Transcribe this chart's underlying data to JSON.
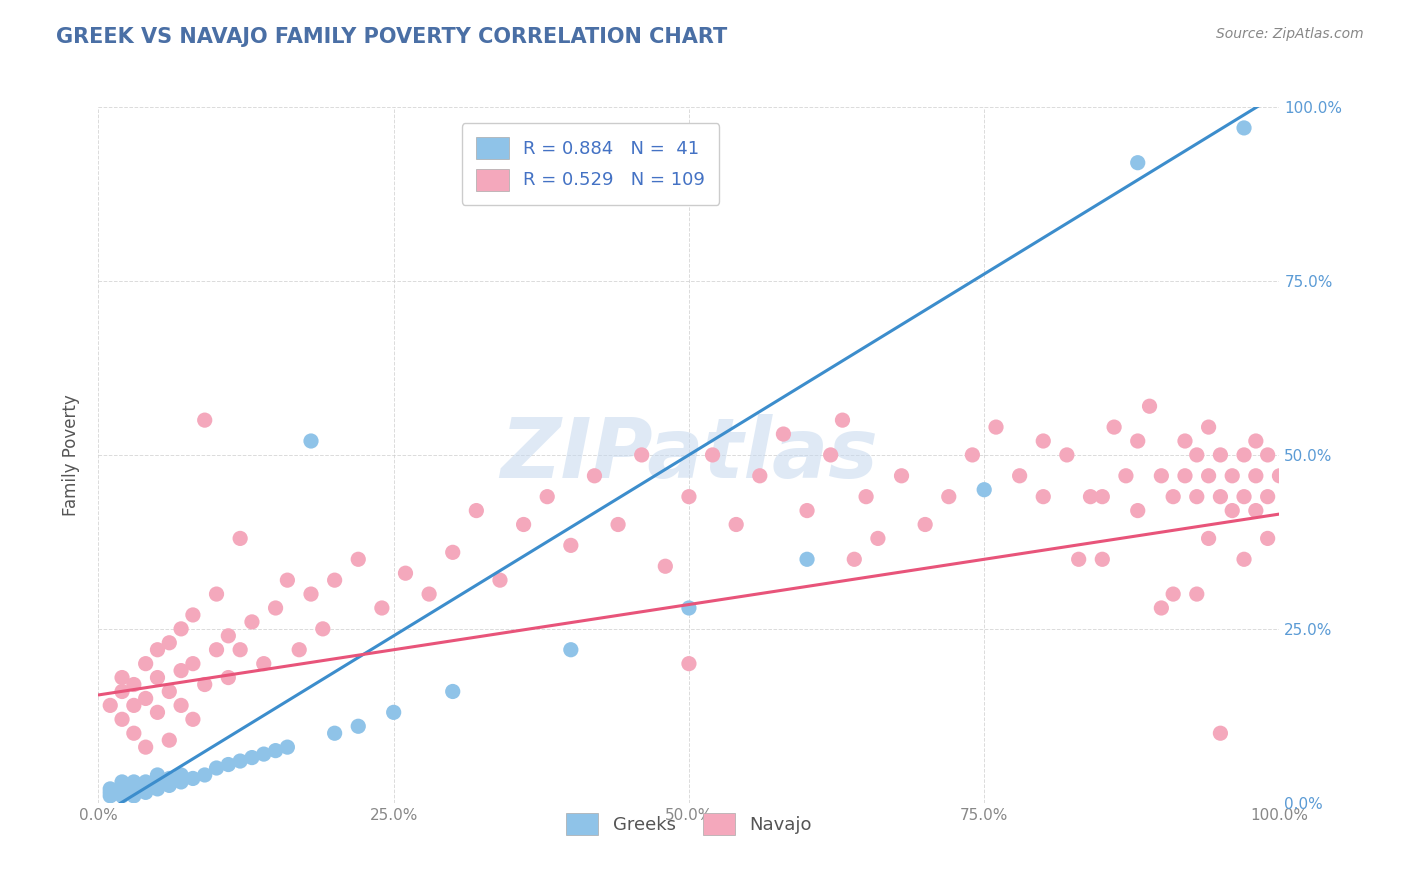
{
  "title": "GREEK VS NAVAJO FAMILY POVERTY CORRELATION CHART",
  "source_text": "Source: ZipAtlas.com",
  "ylabel": "Family Poverty",
  "watermark": "ZIPatlas",
  "xlim": [
    0,
    1
  ],
  "ylim": [
    0,
    1
  ],
  "xticks": [
    0.0,
    0.25,
    0.5,
    0.75,
    1.0
  ],
  "yticks": [
    0.0,
    0.25,
    0.5,
    0.75,
    1.0
  ],
  "xticklabels": [
    "0.0%",
    "25.0%",
    "50.0%",
    "75.0%",
    "100.0%"
  ],
  "yticklabels": [
    "0.0%",
    "25.0%",
    "50.0%",
    "75.0%",
    "100.0%"
  ],
  "greek_R": 0.884,
  "greek_N": 41,
  "navajo_R": 0.529,
  "navajo_N": 109,
  "greek_color": "#8fc3e8",
  "navajo_color": "#f4a8bc",
  "greek_line_color": "#3c8dcc",
  "navajo_line_color": "#e8547a",
  "title_color": "#4a6fa5",
  "legend_text_color": "#4472c4",
  "right_tick_color": "#5b9bd5",
  "greek_scatter": [
    [
      0.01,
      0.01
    ],
    [
      0.01,
      0.02
    ],
    [
      0.01,
      0.015
    ],
    [
      0.02,
      0.01
    ],
    [
      0.02,
      0.02
    ],
    [
      0.02,
      0.025
    ],
    [
      0.02,
      0.03
    ],
    [
      0.03,
      0.01
    ],
    [
      0.03,
      0.02
    ],
    [
      0.03,
      0.03
    ],
    [
      0.03,
      0.025
    ],
    [
      0.04,
      0.015
    ],
    [
      0.04,
      0.02
    ],
    [
      0.04,
      0.03
    ],
    [
      0.05,
      0.02
    ],
    [
      0.05,
      0.03
    ],
    [
      0.05,
      0.04
    ],
    [
      0.06,
      0.025
    ],
    [
      0.06,
      0.035
    ],
    [
      0.07,
      0.03
    ],
    [
      0.07,
      0.04
    ],
    [
      0.08,
      0.035
    ],
    [
      0.09,
      0.04
    ],
    [
      0.1,
      0.05
    ],
    [
      0.11,
      0.055
    ],
    [
      0.12,
      0.06
    ],
    [
      0.13,
      0.065
    ],
    [
      0.14,
      0.07
    ],
    [
      0.15,
      0.075
    ],
    [
      0.16,
      0.08
    ],
    [
      0.18,
      0.52
    ],
    [
      0.2,
      0.1
    ],
    [
      0.22,
      0.11
    ],
    [
      0.25,
      0.13
    ],
    [
      0.3,
      0.16
    ],
    [
      0.4,
      0.22
    ],
    [
      0.5,
      0.28
    ],
    [
      0.6,
      0.35
    ],
    [
      0.75,
      0.45
    ],
    [
      0.88,
      0.92
    ],
    [
      0.97,
      0.97
    ]
  ],
  "navajo_scatter": [
    [
      0.01,
      0.14
    ],
    [
      0.02,
      0.12
    ],
    [
      0.02,
      0.16
    ],
    [
      0.02,
      0.18
    ],
    [
      0.03,
      0.1
    ],
    [
      0.03,
      0.14
    ],
    [
      0.03,
      0.17
    ],
    [
      0.04,
      0.08
    ],
    [
      0.04,
      0.15
    ],
    [
      0.04,
      0.2
    ],
    [
      0.05,
      0.13
    ],
    [
      0.05,
      0.18
    ],
    [
      0.05,
      0.22
    ],
    [
      0.06,
      0.09
    ],
    [
      0.06,
      0.16
    ],
    [
      0.06,
      0.23
    ],
    [
      0.07,
      0.14
    ],
    [
      0.07,
      0.19
    ],
    [
      0.07,
      0.25
    ],
    [
      0.08,
      0.12
    ],
    [
      0.08,
      0.2
    ],
    [
      0.08,
      0.27
    ],
    [
      0.09,
      0.17
    ],
    [
      0.09,
      0.55
    ],
    [
      0.1,
      0.22
    ],
    [
      0.1,
      0.3
    ],
    [
      0.11,
      0.18
    ],
    [
      0.11,
      0.24
    ],
    [
      0.12,
      0.22
    ],
    [
      0.12,
      0.38
    ],
    [
      0.13,
      0.26
    ],
    [
      0.14,
      0.2
    ],
    [
      0.15,
      0.28
    ],
    [
      0.16,
      0.32
    ],
    [
      0.17,
      0.22
    ],
    [
      0.18,
      0.3
    ],
    [
      0.19,
      0.25
    ],
    [
      0.2,
      0.32
    ],
    [
      0.22,
      0.35
    ],
    [
      0.24,
      0.28
    ],
    [
      0.26,
      0.33
    ],
    [
      0.28,
      0.3
    ],
    [
      0.3,
      0.36
    ],
    [
      0.32,
      0.42
    ],
    [
      0.34,
      0.32
    ],
    [
      0.36,
      0.4
    ],
    [
      0.38,
      0.44
    ],
    [
      0.4,
      0.37
    ],
    [
      0.42,
      0.47
    ],
    [
      0.44,
      0.4
    ],
    [
      0.46,
      0.5
    ],
    [
      0.48,
      0.34
    ],
    [
      0.5,
      0.2
    ],
    [
      0.5,
      0.44
    ],
    [
      0.52,
      0.5
    ],
    [
      0.54,
      0.4
    ],
    [
      0.56,
      0.47
    ],
    [
      0.58,
      0.53
    ],
    [
      0.6,
      0.42
    ],
    [
      0.62,
      0.5
    ],
    [
      0.63,
      0.55
    ],
    [
      0.64,
      0.35
    ],
    [
      0.65,
      0.44
    ],
    [
      0.66,
      0.38
    ],
    [
      0.68,
      0.47
    ],
    [
      0.7,
      0.4
    ],
    [
      0.72,
      0.44
    ],
    [
      0.74,
      0.5
    ],
    [
      0.76,
      0.54
    ],
    [
      0.78,
      0.47
    ],
    [
      0.8,
      0.52
    ],
    [
      0.8,
      0.44
    ],
    [
      0.82,
      0.5
    ],
    [
      0.83,
      0.35
    ],
    [
      0.84,
      0.44
    ],
    [
      0.85,
      0.35
    ],
    [
      0.85,
      0.44
    ],
    [
      0.86,
      0.54
    ],
    [
      0.87,
      0.47
    ],
    [
      0.88,
      0.52
    ],
    [
      0.88,
      0.42
    ],
    [
      0.89,
      0.57
    ],
    [
      0.9,
      0.28
    ],
    [
      0.9,
      0.47
    ],
    [
      0.91,
      0.44
    ],
    [
      0.91,
      0.3
    ],
    [
      0.92,
      0.47
    ],
    [
      0.92,
      0.52
    ],
    [
      0.93,
      0.3
    ],
    [
      0.93,
      0.44
    ],
    [
      0.93,
      0.5
    ],
    [
      0.94,
      0.38
    ],
    [
      0.94,
      0.47
    ],
    [
      0.94,
      0.54
    ],
    [
      0.95,
      0.44
    ],
    [
      0.95,
      0.5
    ],
    [
      0.95,
      0.1
    ],
    [
      0.96,
      0.42
    ],
    [
      0.96,
      0.47
    ],
    [
      0.97,
      0.44
    ],
    [
      0.97,
      0.5
    ],
    [
      0.97,
      0.35
    ],
    [
      0.98,
      0.42
    ],
    [
      0.98,
      0.47
    ],
    [
      0.98,
      0.52
    ],
    [
      0.99,
      0.44
    ],
    [
      0.99,
      0.5
    ],
    [
      0.99,
      0.38
    ],
    [
      1.0,
      0.47
    ]
  ],
  "greek_line_x": [
    0.0,
    1.0
  ],
  "greek_line_y": [
    -0.02,
    1.02
  ],
  "navajo_line_x": [
    0.0,
    1.0
  ],
  "navajo_line_y": [
    0.155,
    0.415
  ],
  "background_color": "#ffffff",
  "grid_color": "#cccccc",
  "tick_color": "#888888"
}
